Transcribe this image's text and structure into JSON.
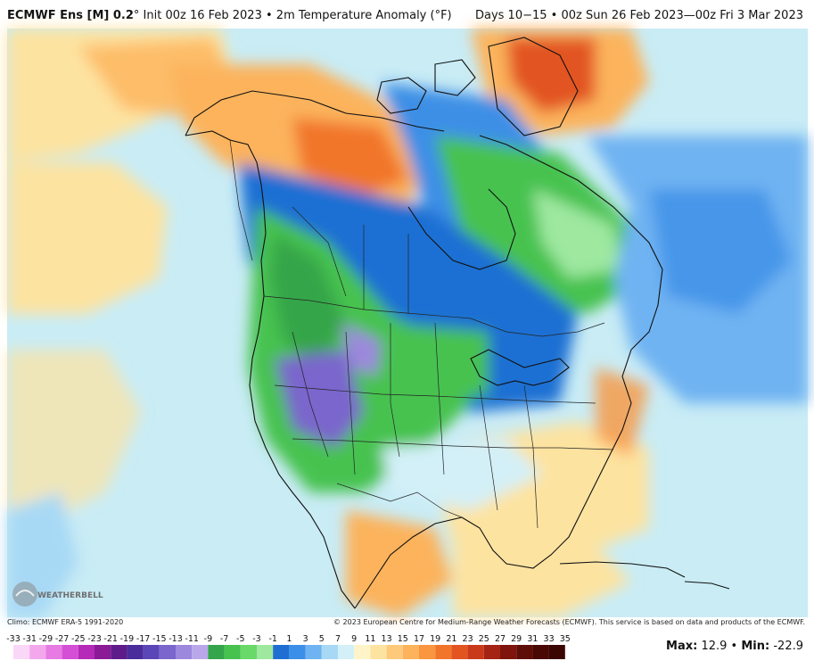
{
  "header": {
    "model": "ECMWF Ens [M] 0.2",
    "degree": "°",
    "init": "Init 00z 16 Feb 2023",
    "variable": "• 2m Temperature Anomaly (°F)",
    "period": "Days 10−15 • 00z Sun 26 Feb 2023—00z Fri 3 Mar 2023"
  },
  "footer": {
    "climo": "Climo: ECMWF ERA-5 1991-2020",
    "copyright": "© 2023 European Centre for Medium-Range Weather Forecasts (ECMWF). This service is based on data and products of the ECMWF."
  },
  "stats": {
    "max_label": "Max:",
    "max_value": "12.9",
    "separator": "•",
    "min_label": "Min:",
    "min_value": "-22.9"
  },
  "logo": {
    "text": "WEATHERBELL"
  },
  "colorbar": {
    "labels": [
      "-33",
      "-31",
      "-29",
      "-27",
      "-25",
      "-23",
      "-21",
      "-19",
      "-17",
      "-15",
      "-13",
      "-11",
      "-9",
      "-7",
      "-5",
      "-3",
      "-1",
      "1",
      "3",
      "5",
      "7",
      "9",
      "11",
      "13",
      "15",
      "17",
      "19",
      "21",
      "23",
      "25",
      "27",
      "29",
      "31",
      "33",
      "35"
    ],
    "colors": [
      "#fbd7f7",
      "#f3a8ee",
      "#e77ae3",
      "#d54fd6",
      "#b52ab8",
      "#8a1a96",
      "#5e1c8a",
      "#4a2c9a",
      "#5b46b8",
      "#7a66cc",
      "#9c88dd",
      "#b9a7ea",
      "#34a54a",
      "#47c24f",
      "#69d96a",
      "#9ee8a0",
      "#1f6fd3",
      "#3c8fe6",
      "#6fb3f2",
      "#a7d9f5",
      "#d3f0f8",
      "#fff4c7",
      "#fde3a0",
      "#fdc97a",
      "#fcb35b",
      "#f9963f",
      "#f1762c",
      "#e25521",
      "#c93a1a",
      "#a42314",
      "#7e140c",
      "#5e0d07",
      "#4a0804",
      "#3a0502"
    ]
  },
  "map": {
    "region": "North America",
    "colors": {
      "ocean_base": "#c9ecf5",
      "warm_light": "#fde3a0",
      "warm_mid": "#fcb35b",
      "warm_strong": "#f1762c",
      "warm_max": "#e25521",
      "cool_light": "#a7d9f5",
      "cool_mid": "#6fb3f2",
      "cool_blue": "#3c8fe6",
      "cool_deep": "#1f6fd3",
      "green_light": "#9ee8a0",
      "green_mid": "#47c24f",
      "green_dark": "#34a54a",
      "purple": "#7a66cc",
      "purple_dark": "#5b46b8"
    }
  }
}
